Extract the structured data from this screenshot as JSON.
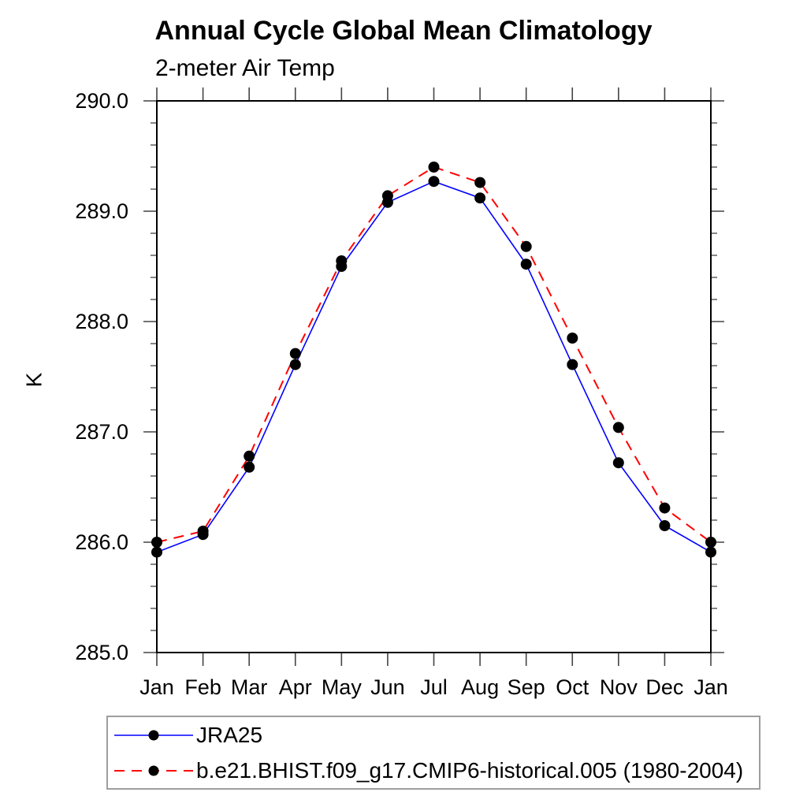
{
  "title": "Annual Cycle Global Mean Climatology",
  "subtitle": "2-meter Air Temp",
  "y_axis_title": "K",
  "colors": {
    "series_jra25": "#0000ff",
    "series_model": "#ff0000",
    "marker": "#000000",
    "axis_frame": "#000000",
    "ticks": "#444444",
    "legend_border": "#9e9e9e",
    "background": "#ffffff"
  },
  "chart_data": {
    "type": "line",
    "title": "Annual Cycle Global Mean Climatology",
    "subtitle": "2-meter Air Temp",
    "xlabel": "",
    "ylabel": "K",
    "categories": [
      "Jan",
      "Feb",
      "Mar",
      "Apr",
      "May",
      "Jun",
      "Jul",
      "Aug",
      "Sep",
      "Oct",
      "Nov",
      "Dec",
      "Jan"
    ],
    "ylim": [
      285.0,
      290.0
    ],
    "ytick_major_step": 1.0,
    "ytick_minor_step": 0.2,
    "y_tick_labels": [
      "285.0",
      "286.0",
      "287.0",
      "288.0",
      "289.0",
      "290.0"
    ],
    "grid": false,
    "legend_position": "below-left",
    "series": [
      {
        "name": "JRA25",
        "color": "#0000ff",
        "line_style": "solid",
        "marker": "filled-circle",
        "values": [
          285.91,
          286.07,
          286.68,
          287.61,
          288.5,
          289.08,
          289.27,
          289.12,
          288.52,
          287.61,
          286.72,
          286.15,
          285.91
        ]
      },
      {
        "name": "b.e21.BHIST.f09_g17.CMIP6-historical.005 (1980-2004)",
        "color": "#ff0000",
        "line_style": "dashed",
        "marker": "filled-circle",
        "values": [
          286.0,
          286.1,
          286.78,
          287.71,
          288.55,
          289.14,
          289.4,
          289.26,
          288.68,
          287.85,
          287.04,
          286.31,
          286.0
        ]
      }
    ]
  }
}
